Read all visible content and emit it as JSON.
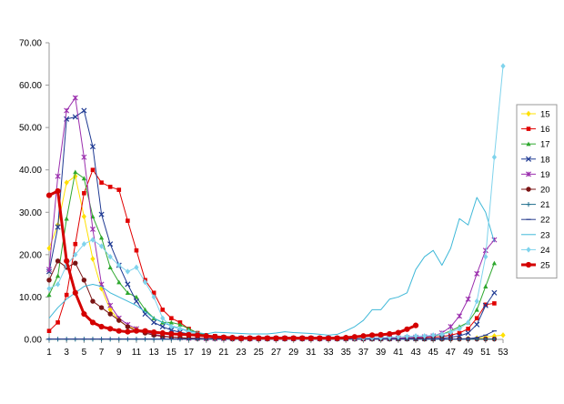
{
  "chart_data": {
    "type": "line",
    "title": "",
    "xlabel": "",
    "ylabel": "",
    "ylim": [
      0,
      70
    ],
    "yticks": [
      "0.00",
      "10.00",
      "20.00",
      "30.00",
      "40.00",
      "50.00",
      "60.00",
      "70.00"
    ],
    "xlim": [
      1,
      53
    ],
    "xticks": [
      "1",
      "3",
      "5",
      "7",
      "9",
      "11",
      "13",
      "15",
      "17",
      "19",
      "21",
      "23",
      "25",
      "27",
      "29",
      "31",
      "33",
      "35",
      "37",
      "39",
      "41",
      "43",
      "45",
      "47",
      "49",
      "51",
      "53"
    ],
    "legend_position": "right",
    "grid": false,
    "series": [
      {
        "name": "15",
        "color": "#FFE000",
        "marker": "diamond",
        "width": 1,
        "values": [
          21.5,
          27,
          37,
          38.5,
          29,
          19,
          12,
          7,
          4.5,
          3,
          2.5,
          1.8,
          1.2,
          0.8,
          0.6,
          0.4,
          0.3,
          0.3,
          0.2,
          0.2,
          0.2,
          0.1,
          0.1,
          0.1,
          0.1,
          0.1,
          0.1,
          0.1,
          0.1,
          0.1,
          0.1,
          0.1,
          0.1,
          0.1,
          0.1,
          0.1,
          0.1,
          0.1,
          0.1,
          0.1,
          0.1,
          0.1,
          0.1,
          0.1,
          0.1,
          0.1,
          0.1,
          0.1,
          0.2,
          0.3,
          0.5,
          0.8,
          1.0
        ]
      },
      {
        "name": "16",
        "color": "#E00000",
        "marker": "square",
        "width": 1,
        "values": [
          2,
          4,
          10.5,
          22.5,
          34.5,
          40,
          37,
          36,
          35.3,
          28,
          21,
          14,
          11,
          7,
          5,
          4,
          2.5,
          1.5,
          1,
          0.8,
          0.5,
          0.4,
          0.3,
          0.3,
          0.2,
          0.2,
          0.2,
          0.2,
          0.2,
          0.2,
          0.2,
          0.2,
          0.2,
          0.2,
          0.2,
          0.2,
          0.2,
          0.2,
          0.2,
          0.2,
          0.3,
          0.3,
          0.3,
          0.4,
          0.5,
          0.7,
          1,
          1.5,
          2.5,
          5,
          8.2,
          8.5,
          null
        ]
      },
      {
        "name": "17",
        "color": "#2EA82E",
        "marker": "triangle",
        "width": 1,
        "values": [
          10.5,
          15,
          28.5,
          39.5,
          38,
          29,
          24,
          17,
          13.5,
          11,
          10,
          7,
          5,
          4,
          4,
          3.5,
          2.5,
          1.5,
          1,
          0.8,
          0.5,
          0.4,
          0.3,
          0.3,
          0.2,
          0.2,
          0.2,
          0.2,
          0.2,
          0.2,
          0.2,
          0.2,
          0.2,
          0.2,
          0.2,
          0.2,
          0.2,
          0.2,
          0.3,
          0.3,
          0.3,
          0.4,
          0.5,
          0.6,
          0.8,
          1.2,
          2,
          3,
          4,
          7,
          12.5,
          18,
          null
        ]
      },
      {
        "name": "18",
        "color": "#1F3A93",
        "marker": "x",
        "width": 1,
        "values": [
          16,
          26.5,
          52,
          52.5,
          54,
          45.5,
          29.5,
          22.5,
          17.5,
          13,
          9,
          6,
          4,
          3,
          2.2,
          1.7,
          1.3,
          0.9,
          0.6,
          0.5,
          0.4,
          0.3,
          0.3,
          0.2,
          0.2,
          0.2,
          0.2,
          0.2,
          0.2,
          0.2,
          0.2,
          0.2,
          0.2,
          0.2,
          0.2,
          0.2,
          0.2,
          0.2,
          0.2,
          0.2,
          0.2,
          0.2,
          0.2,
          0.2,
          0.2,
          0.3,
          0.5,
          0.8,
          1.5,
          3.5,
          8,
          11,
          null
        ]
      },
      {
        "name": "19",
        "color": "#9B2FAE",
        "marker": "star",
        "width": 1,
        "values": [
          16.5,
          38.5,
          54,
          57,
          43,
          26,
          13,
          8,
          5,
          3.5,
          2.5,
          1.8,
          1.2,
          0.8,
          0.6,
          0.4,
          0.3,
          0.3,
          0.2,
          0.2,
          0.2,
          0.2,
          0.2,
          0.2,
          0.2,
          0.2,
          0.2,
          0.2,
          0.2,
          0.2,
          0.2,
          0.2,
          0.2,
          0.2,
          0.2,
          0.2,
          0.2,
          0.3,
          0.3,
          0.3,
          0.3,
          0.4,
          0.5,
          0.6,
          0.8,
          1.5,
          3,
          5.5,
          9.5,
          15.5,
          21,
          23.5,
          null
        ]
      },
      {
        "name": "20",
        "color": "#7A1414",
        "marker": "circle",
        "width": 1,
        "values": [
          14,
          18.5,
          17,
          18,
          14,
          9,
          7.5,
          6,
          4.5,
          3,
          2,
          1.5,
          1,
          0.7,
          0.5,
          0.4,
          0.3,
          0.2,
          0.2,
          0.2,
          0.2,
          0.1,
          0.1,
          0.1,
          0.1,
          0.1,
          0.1,
          0.1,
          0.1,
          0.1,
          0.1,
          0.1,
          0.1,
          0.1,
          0.1,
          0.1,
          0.1,
          0.1,
          0.1,
          0.1,
          0.1,
          0.1,
          0.1,
          0.1,
          0.1,
          0.1,
          0.1,
          0.1,
          0.1,
          0.1,
          0.1,
          0.1,
          null
        ]
      },
      {
        "name": "21",
        "color": "#1F6E8C",
        "marker": "plus",
        "width": 1,
        "values": [
          0.05,
          0.05,
          0.05,
          0.05,
          0.05,
          0.05,
          0.05,
          0.05,
          0.05,
          0.05,
          0.05,
          0.05,
          0.05,
          0.05,
          0.05,
          0.05,
          0.05,
          0.05,
          0.05,
          0.05,
          0.05,
          0.05,
          0.05,
          0.05,
          0.05,
          0.05,
          0.05,
          0.05,
          0.05,
          0.05,
          0.05,
          0.05,
          0.05,
          0.05,
          0.05,
          0.05,
          0.05,
          0.05,
          0.05,
          0.05,
          0.05,
          0.05,
          0.05,
          0.05,
          0.05,
          0.05,
          0.05,
          0.05,
          0.05,
          0.05,
          0.05,
          0.05,
          null
        ]
      },
      {
        "name": "22",
        "color": "#2A3F8F",
        "marker": "dash",
        "width": 1,
        "values": [
          0.1,
          0.1,
          0.1,
          0.1,
          0.1,
          0.1,
          0.1,
          0.1,
          0.1,
          0.1,
          0.1,
          0.1,
          0.1,
          0.1,
          0.1,
          0.1,
          0.1,
          0.1,
          0.1,
          0.1,
          0.1,
          0.1,
          0.1,
          0.1,
          0.1,
          0.1,
          0.1,
          0.1,
          0.1,
          0.1,
          0.1,
          0.1,
          0.1,
          0.1,
          0.1,
          0.1,
          0.1,
          0.1,
          0.1,
          0.1,
          0.1,
          0.1,
          0.1,
          0.1,
          0.1,
          0.1,
          0.1,
          0.1,
          0.2,
          0.4,
          1,
          2,
          null
        ]
      },
      {
        "name": "23",
        "color": "#3EB8D8",
        "marker": "none",
        "width": 1,
        "values": [
          5,
          7.5,
          9.5,
          11,
          12.5,
          13,
          12.5,
          11,
          10,
          9,
          8,
          6.5,
          5,
          4,
          3.2,
          2.6,
          2,
          1.6,
          1.3,
          1.7,
          1.6,
          1.5,
          1.4,
          1.3,
          1.3,
          1.3,
          1.5,
          1.8,
          1.6,
          1.5,
          1.4,
          1.2,
          1,
          1.2,
          2,
          3,
          4.5,
          7,
          7,
          9.5,
          10,
          11,
          16.5,
          19.5,
          21,
          17.5,
          21.5,
          28.5,
          27,
          33.5,
          30,
          23,
          null
        ]
      },
      {
        "name": "24",
        "color": "#7FD3EC",
        "marker": "diamond",
        "width": 1,
        "values": [
          12,
          13,
          17.5,
          20,
          22.5,
          23.5,
          22,
          19.5,
          17.5,
          16,
          17,
          13.5,
          10,
          5,
          3,
          2.5,
          1.8,
          1.2,
          0.8,
          0.5,
          0.4,
          0.3,
          0.3,
          0.3,
          0.3,
          0.3,
          0.3,
          0.3,
          0.3,
          0.3,
          0.3,
          0.3,
          0.3,
          0.3,
          0.3,
          0.3,
          0.3,
          0.4,
          0.4,
          0.5,
          0.6,
          0.7,
          0.8,
          0.8,
          1,
          1.2,
          1.7,
          2.5,
          4,
          9,
          19.5,
          43,
          64.5
        ]
      },
      {
        "name": "25",
        "color": "#D40000",
        "marker": "circle",
        "width": 3,
        "values": [
          34,
          35,
          18.5,
          11,
          6,
          4,
          3,
          2.5,
          2,
          1.8,
          2,
          2,
          1.7,
          1.5,
          1.3,
          1.2,
          1.1,
          1,
          0.8,
          0.6,
          0.5,
          0.4,
          0.3,
          0.3,
          0.3,
          0.3,
          0.3,
          0.3,
          0.3,
          0.3,
          0.3,
          0.3,
          0.3,
          0.3,
          0.4,
          0.6,
          0.8,
          1,
          1.1,
          1.3,
          1.6,
          2.4,
          3.3,
          null,
          null,
          null,
          null,
          null,
          null,
          null,
          null,
          null,
          null
        ]
      }
    ]
  }
}
